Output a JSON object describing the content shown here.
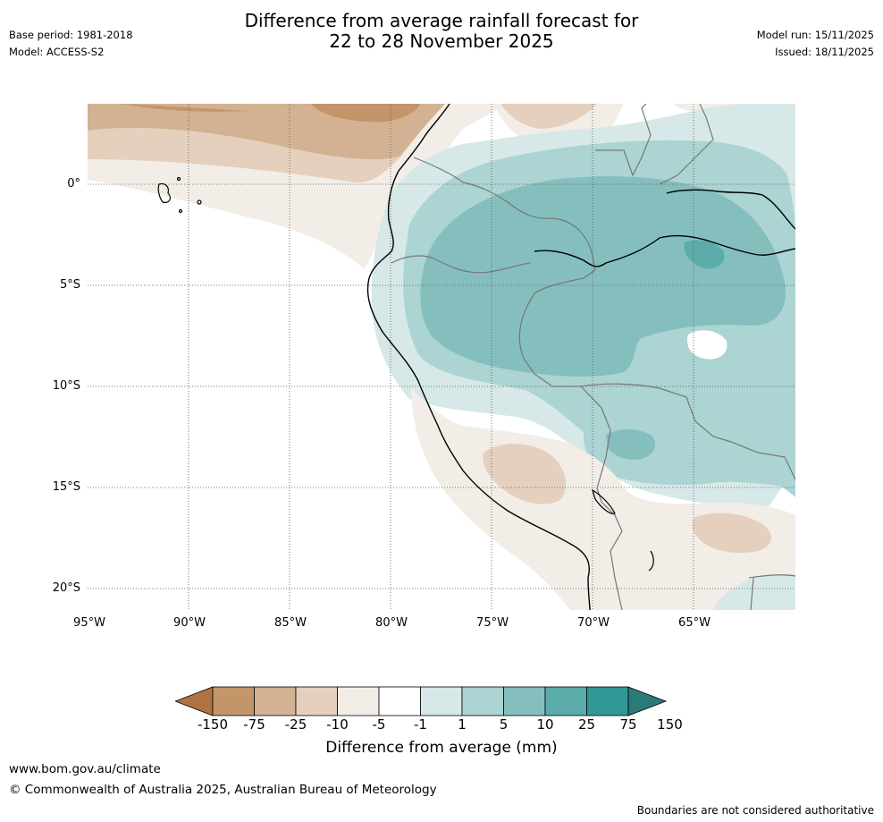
{
  "header": {
    "title_line1": "Difference from average rainfall forecast for",
    "title_line2": "22 to 28 November 2025",
    "base_period": "Base period: 1981-2018",
    "model": "Model: ACCESS-S2",
    "model_run": "Model run: 15/11/2025",
    "issued": "Issued: 18/11/2025"
  },
  "map": {
    "lat_labels": [
      "0°",
      "5°S",
      "10°S",
      "15°S",
      "20°S"
    ],
    "lon_labels": [
      "95°W",
      "90°W",
      "85°W",
      "80°W",
      "75°W",
      "70°W",
      "65°W"
    ]
  },
  "colorbar": {
    "ticks": [
      "-150",
      "-75",
      "-25",
      "-10",
      "-5",
      "-1",
      "1",
      "5",
      "10",
      "25",
      "75",
      "150"
    ],
    "colors": [
      "#ae7340",
      "#c39569",
      "#d2b292",
      "#e4d0bd",
      "#f2ede7",
      "#ffffff",
      "#d6e8e7",
      "#abd4d3",
      "#84bfbe",
      "#5cacaa",
      "#319895",
      "#2a7b78"
    ],
    "title": "Difference from average (mm)"
  },
  "footer": {
    "url": "www.bom.gov.au/climate",
    "copyright": "© Commonwealth of Australia 2025, Australian Bureau of Meteorology",
    "note": "Boundaries are not considered authoritative"
  }
}
